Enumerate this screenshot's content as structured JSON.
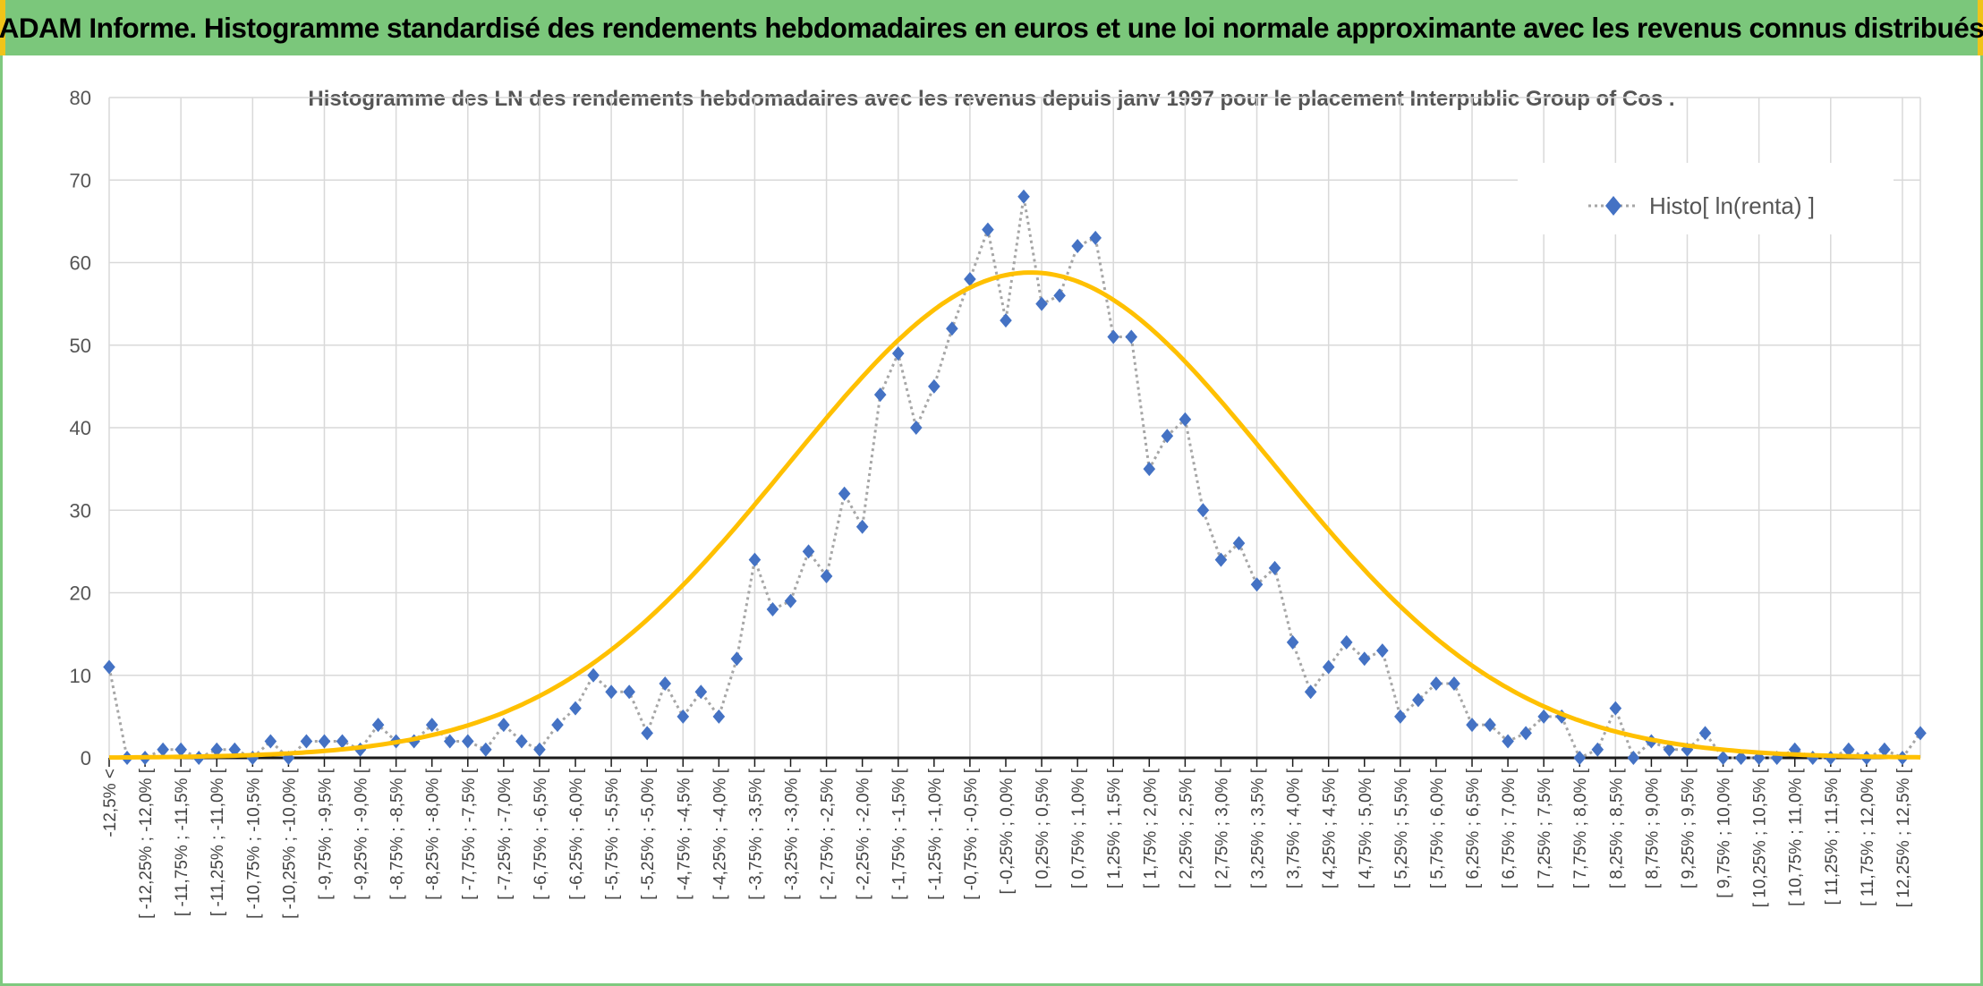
{
  "banner": {
    "title": "ADAM Informe. Histogramme standardisé des rendements hebdomadaires en euros et une loi normale approximante avec les revenus connus distribués"
  },
  "colors": {
    "banner_bg": "#7bc77b",
    "banner_accent": "#f0c419",
    "series_marker": "#4472c4",
    "series_line": "#a6a6a6",
    "normal_curve": "#ffc000"
  },
  "chart_data": {
    "type": "line",
    "title": "Histogramme des LN des rendements hebdomadaires avec les revenus depuis janv 1997 pour le placement Interpublic Group of Cos .",
    "xlabel": "",
    "ylabel": "",
    "ylim": [
      0,
      80
    ],
    "yticks": [
      0,
      10,
      20,
      30,
      40,
      50,
      60,
      70,
      80
    ],
    "grid": true,
    "legend_position": "top-right",
    "categories": [
      "-12,5% <",
      "[ -12,25% ; -12,0% [",
      "[ -11,75% ; -11,5% [",
      "[ -11,25% ; -11,0% [",
      "[ -10,75% ; -10,5% [",
      "[ -10,25% ; -10,0% [",
      "[ -9,75% ; -9,5% [",
      "[ -9,25% ; -9,0% [",
      "[ -8,75% ; -8,5% [",
      "[ -8,25% ; -8,0% [",
      "[ -7,75% ; -7,5% [",
      "[ -7,25% ; -7,0% [",
      "[ -6,75% ; -6,5% [",
      "[ -6,25% ; -6,0% [",
      "[ -5,75% ; -5,5% [",
      "[ -5,25% ; -5,0% [",
      "[ -4,75% ; -4,5% [",
      "[ -4,25% ; -4,0% [",
      "[ -3,75% ; -3,5% [",
      "[ -3,25% ; -3,0% [",
      "[ -2,75% ; -2,5% [",
      "[ -2,25% ; -2,0% [",
      "[ -1,75% ; -1,5% [",
      "[ -1,25% ; -1,0% [",
      "[ -0,75% ; -0,5% [",
      "[ -0,25% ; 0,0% [",
      "[ 0,25% ; 0,5% [",
      "[ 0,75% ; 1,0% [",
      "[ 1,25% ; 1,5% [",
      "[ 1,75% ; 2,0% [",
      "[ 2,25% ; 2,5% [",
      "[ 2,75% ; 3,0% [",
      "[ 3,25% ; 3,5% [",
      "[ 3,75% ; 4,0% [",
      "[ 4,25% ; 4,5% [",
      "[ 4,75% ; 5,0% [",
      "[ 5,25% ; 5,5% [",
      "[ 5,75% ; 6,0% [",
      "[ 6,25% ; 6,5% [",
      "[ 6,75% ; 7,0% [",
      "[ 7,25% ; 7,5% [",
      "[ 7,75% ; 8,0% [",
      "[ 8,25% ; 8,5% [",
      "[ 8,75% ; 9,0% [",
      "[ 9,25% ; 9,5% [",
      "[ 9,75% ; 10,0% [",
      "[ 10,25% ; 10,5% [",
      "[ 10,75% ; 11,0% [",
      "[ 11,25% ; 11,5% [",
      "[ 11,75% ; 12,0% [",
      "[ 12,25% ; 12,5% ["
    ],
    "histogram_values": [
      11,
      0,
      0,
      1,
      1,
      0,
      1,
      1,
      0,
      2,
      0,
      2,
      2,
      2,
      1,
      4,
      2,
      2,
      4,
      2,
      2,
      1,
      4,
      2,
      1,
      4,
      6,
      10,
      8,
      8,
      3,
      9,
      5,
      8,
      5,
      12,
      24,
      18,
      19,
      25,
      22,
      32,
      28,
      44,
      49,
      40,
      45,
      52,
      58,
      64,
      53,
      68,
      55,
      56,
      62,
      63,
      51,
      51,
      35,
      39,
      41,
      30,
      24,
      26,
      21,
      23,
      14,
      8,
      11,
      14,
      12,
      13,
      5,
      7,
      9,
      9,
      4,
      4,
      2,
      3,
      5,
      5,
      0,
      1,
      6,
      0,
      2,
      1,
      1,
      3,
      0,
      0,
      0,
      0,
      1,
      0,
      0,
      1,
      0,
      1,
      0,
      3
    ],
    "normal_mean_index": 51.4,
    "normal_sd_index": 13.5,
    "normal_peak": 58.8,
    "series": [
      {
        "name": "Histo[ ln(renta) ]",
        "kind": "histogram",
        "marker": "diamond",
        "line": "dotted"
      },
      {
        "kind": "normal",
        "line": "solid"
      }
    ]
  }
}
